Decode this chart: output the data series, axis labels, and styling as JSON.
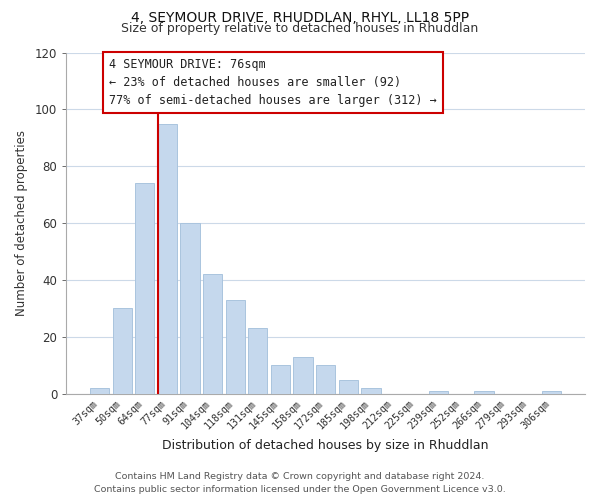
{
  "title": "4, SEYMOUR DRIVE, RHUDDLAN, RHYL, LL18 5PP",
  "subtitle": "Size of property relative to detached houses in Rhuddlan",
  "xlabel": "Distribution of detached houses by size in Rhuddlan",
  "ylabel": "Number of detached properties",
  "bar_labels": [
    "37sqm",
    "50sqm",
    "64sqm",
    "77sqm",
    "91sqm",
    "104sqm",
    "118sqm",
    "131sqm",
    "145sqm",
    "158sqm",
    "172sqm",
    "185sqm",
    "198sqm",
    "212sqm",
    "225sqm",
    "239sqm",
    "252sqm",
    "266sqm",
    "279sqm",
    "293sqm",
    "306sqm"
  ],
  "bar_values": [
    2,
    30,
    74,
    95,
    60,
    42,
    33,
    23,
    10,
    13,
    10,
    5,
    2,
    0,
    0,
    1,
    0,
    1,
    0,
    0,
    1
  ],
  "bar_color": "#c5d8ed",
  "bar_edge_color": "#aac4de",
  "vline_color": "#cc0000",
  "vline_x_index": 3,
  "ylim": [
    0,
    120
  ],
  "yticks": [
    0,
    20,
    40,
    60,
    80,
    100,
    120
  ],
  "annotation_title": "4 SEYMOUR DRIVE: 76sqm",
  "annotation_line1": "← 23% of detached houses are smaller (92)",
  "annotation_line2": "77% of semi-detached houses are larger (312) →",
  "annotation_box_color": "#ffffff",
  "annotation_box_edge": "#cc0000",
  "footer_line1": "Contains HM Land Registry data © Crown copyright and database right 2024.",
  "footer_line2": "Contains public sector information licensed under the Open Government Licence v3.0.",
  "background_color": "#ffffff",
  "grid_color": "#ccd9e8",
  "title_fontsize": 10,
  "subtitle_fontsize": 9,
  "annotation_fontsize": 8.5,
  "footer_fontsize": 6.8
}
